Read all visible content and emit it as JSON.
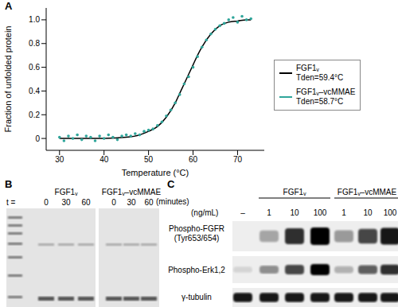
{
  "chart_data": {
    "type": "line",
    "panel_label": "A",
    "x_label": "Temperature (°C)",
    "y_label": "Fraction of unfolded protein",
    "xlim": [
      27,
      76
    ],
    "xticks": [
      30,
      40,
      50,
      60,
      70
    ],
    "ylim": [
      -0.1,
      1.1
    ],
    "yticks": [
      0,
      0.2,
      0.4,
      0.6,
      0.8,
      {
        "value": 1,
        "label": "1.0"
      }
    ],
    "grid": false,
    "legend": "right",
    "series": [
      {
        "name": "FGF1ᵥ",
        "annotation": "Tden=59.4°C",
        "type": "line",
        "color": "#000000",
        "x": [
          30,
          35,
          40,
          45,
          48,
          50,
          52,
          54,
          56,
          57,
          58,
          59,
          60,
          61,
          62,
          64,
          66,
          68,
          70,
          72,
          73
        ],
        "values": [
          0,
          0,
          0,
          0.01,
          0.03,
          0.06,
          0.1,
          0.18,
          0.3,
          0.38,
          0.46,
          0.54,
          0.62,
          0.7,
          0.77,
          0.88,
          0.95,
          0.98,
          0.99,
          1.0,
          1.0
        ]
      },
      {
        "name": "FGF1ᵥ–vcMMAE",
        "annotation": "Tden=58.7°C",
        "type": "scatter",
        "marker": "circle",
        "color": "#2fa59a",
        "x": [
          30,
          31,
          32,
          33,
          34,
          35,
          36,
          37,
          38,
          39,
          40,
          41,
          42,
          43,
          44,
          45,
          46,
          47,
          48,
          49,
          50,
          51,
          52,
          53,
          54,
          55,
          56,
          57,
          58,
          59,
          60,
          61,
          62,
          63,
          64,
          65,
          66,
          67,
          68,
          69,
          70,
          71,
          72,
          73
        ],
        "values": [
          0.01,
          -0.02,
          0.02,
          0.0,
          0.03,
          -0.01,
          0.02,
          0.01,
          -0.02,
          0.02,
          0.0,
          0.03,
          0.01,
          -0.01,
          0.02,
          0.03,
          0.02,
          0.04,
          0.03,
          0.06,
          0.07,
          0.08,
          0.11,
          0.14,
          0.19,
          0.24,
          0.3,
          0.37,
          0.46,
          0.52,
          0.6,
          0.69,
          0.77,
          0.83,
          0.88,
          0.92,
          0.95,
          0.97,
          1.0,
          1.02,
          0.98,
          1.03,
          1.0,
          1.01
        ]
      }
    ]
  },
  "panels": {
    "B": {
      "label": "B",
      "groups": [
        "FGF1ᵥ",
        "FGF1ᵥ–vcMMAE"
      ],
      "time_label": "t =",
      "times": [
        "0",
        "30",
        "60"
      ],
      "time_unit": "(minutes)"
    },
    "C": {
      "label": "C",
      "unit": "(ng/mL)",
      "control": "–",
      "groups": [
        "FGF1ᵥ",
        "FGF1ᵥ–vcMMAE"
      ],
      "doses": [
        "1",
        "10",
        "100"
      ],
      "rows": [
        [
          "Phospho-FGFR",
          "(Tyr653/654)"
        ],
        [
          "Phospho-Erk1,2"
        ],
        [
          "γ-tubulin"
        ]
      ]
    }
  }
}
